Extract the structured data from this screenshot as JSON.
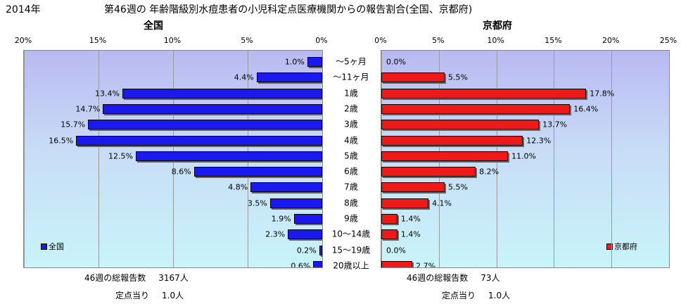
{
  "header": {
    "year": "2014年",
    "title": "第46週の 年齢階級別水痘患者の小児科定点医療機関からの報告割合(全国、京都府)"
  },
  "chart_data": [
    {
      "type": "bar",
      "orientation": "horizontal",
      "direction": "right-to-left",
      "title": "全国",
      "categories": [
        "～5ヶ月",
        "～11ヶ月",
        "1歳",
        "2歳",
        "3歳",
        "4歳",
        "5歳",
        "6歳",
        "7歳",
        "8歳",
        "9歳",
        "10～14歳",
        "15～19歳",
        "20歳以上"
      ],
      "series": [
        {
          "name": "全国",
          "values": [
            1.0,
            4.4,
            13.4,
            14.7,
            15.7,
            16.5,
            12.5,
            8.6,
            4.8,
            3.5,
            1.9,
            2.3,
            0.2,
            0.6
          ],
          "color": "#1a1aee"
        }
      ],
      "data_labels": [
        "1.0%",
        "4.4%",
        "13.4%",
        "14.7%",
        "15.7%",
        "16.5%",
        "12.5%",
        "8.6%",
        "4.8%",
        "3.5%",
        "1.9%",
        "2.3%",
        "0.2%",
        "0.6%"
      ],
      "xlim": [
        0,
        20
      ],
      "ticks": [
        "20%",
        "15%",
        "10%",
        "5%",
        "0%"
      ],
      "tick_values": [
        20,
        15,
        10,
        5,
        0
      ],
      "legend": "bottom-left",
      "grid": true
    },
    {
      "type": "bar",
      "orientation": "horizontal",
      "direction": "left-to-right",
      "title": "京都府",
      "categories": [
        "～5ヶ月",
        "～11ヶ月",
        "1歳",
        "2歳",
        "3歳",
        "4歳",
        "5歳",
        "6歳",
        "7歳",
        "8歳",
        "9歳",
        "10～14歳",
        "15～19歳",
        "20歳以上"
      ],
      "series": [
        {
          "name": "京都府",
          "values": [
            0.0,
            5.5,
            17.8,
            16.4,
            13.7,
            12.3,
            11.0,
            8.2,
            5.5,
            4.1,
            1.4,
            1.4,
            0.0,
            2.7
          ],
          "color": "#ee1a1a"
        }
      ],
      "data_labels": [
        "0.0%",
        "5.5%",
        "17.8%",
        "16.4%",
        "13.7%",
        "12.3%",
        "11.0%",
        "8.2%",
        "5.5%",
        "4.1%",
        "1.4%",
        "1.4%",
        "0.0%",
        "2.7%"
      ],
      "xlim": [
        0,
        25
      ],
      "ticks": [
        "0%",
        "5%",
        "10%",
        "15%",
        "20%",
        "25%"
      ],
      "tick_values": [
        0,
        5,
        10,
        15,
        20,
        25
      ],
      "legend": "bottom-right",
      "grid": true
    }
  ],
  "footer": {
    "left": {
      "total_label": "46週の総報告数",
      "total_value": "3167人",
      "per_label": "定点当り",
      "per_value": "1.0人"
    },
    "right": {
      "total_label": "46週の総報告数",
      "total_value": "73人",
      "per_label": "定点当り",
      "per_value": "1.0人"
    }
  },
  "colors": {
    "national": "#1a1aee",
    "kyoto": "#ee1a1a",
    "panel_top": "#b9b9f2",
    "panel_bottom": "#c8f4fa"
  }
}
